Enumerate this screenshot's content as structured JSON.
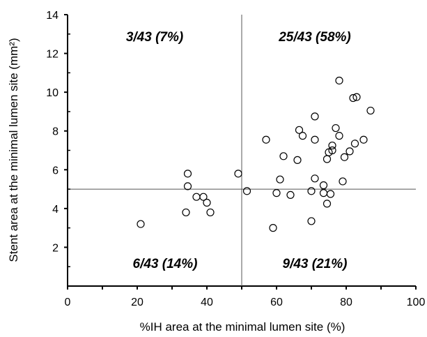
{
  "chart_data": {
    "type": "scatter",
    "xlabel": "%IH area at the minimal lumen site (%)",
    "ylabel": "Stent area at the minimal lumen site (mm²)",
    "xlim": [
      0,
      100
    ],
    "ylim": [
      0,
      14
    ],
    "x_ticks": [
      0,
      20,
      40,
      60,
      80,
      100
    ],
    "y_ticks": [
      2,
      4,
      6,
      8,
      10,
      12,
      14
    ],
    "grid": false,
    "legend": "none",
    "reference_lines": {
      "x": 50,
      "y": 5
    },
    "quadrant_labels": {
      "top_left": "3/43 (7%)",
      "top_right": "25/43 (58%)",
      "bottom_left": "6/43 (14%)",
      "bottom_right": "9/43 (21%)"
    },
    "marker": "open-circle",
    "points": [
      [
        21,
        3.2
      ],
      [
        34,
        3.8
      ],
      [
        34.5,
        5.8
      ],
      [
        34.5,
        5.15
      ],
      [
        37,
        4.6
      ],
      [
        39,
        4.6
      ],
      [
        40,
        4.3
      ],
      [
        41,
        3.8
      ],
      [
        49,
        5.8
      ],
      [
        51.5,
        4.9
      ],
      [
        57,
        7.55
      ],
      [
        59,
        3.0
      ],
      [
        60,
        4.8
      ],
      [
        61,
        5.5
      ],
      [
        62,
        6.7
      ],
      [
        64,
        4.7
      ],
      [
        66,
        6.5
      ],
      [
        66.5,
        8.05
      ],
      [
        67.5,
        7.75
      ],
      [
        70,
        4.9
      ],
      [
        70,
        3.35
      ],
      [
        71,
        8.75
      ],
      [
        71,
        7.55
      ],
      [
        71,
        5.55
      ],
      [
        73.5,
        5.2
      ],
      [
        73.5,
        4.8
      ],
      [
        74.5,
        4.25
      ],
      [
        74.5,
        6.55
      ],
      [
        75,
        6.9
      ],
      [
        75.5,
        4.75
      ],
      [
        76,
        7.25
      ],
      [
        76,
        7.0
      ],
      [
        77,
        8.15
      ],
      [
        78,
        10.6
      ],
      [
        78,
        7.75
      ],
      [
        79,
        5.4
      ],
      [
        79.5,
        6.65
      ],
      [
        81,
        6.95
      ],
      [
        82,
        9.7
      ],
      [
        82.5,
        7.35
      ],
      [
        83,
        9.75
      ],
      [
        85,
        7.55
      ],
      [
        87,
        9.05
      ]
    ]
  }
}
